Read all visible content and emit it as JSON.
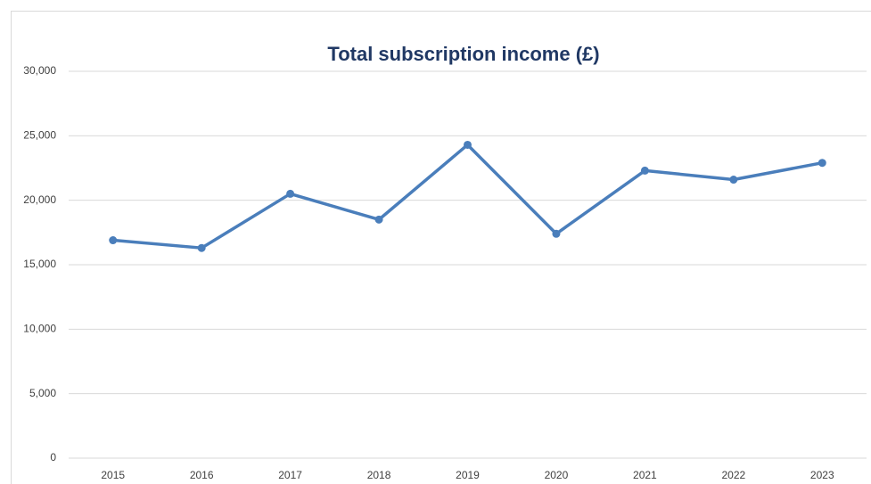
{
  "chart_data": {
    "type": "line",
    "title": "Total subscription income (£)",
    "categories": [
      "2015",
      "2016",
      "2017",
      "2018",
      "2019",
      "2020",
      "2021",
      "2022",
      "2023"
    ],
    "series": [
      {
        "name": "Total subscription income",
        "color": "#4a7ebb",
        "values": [
          16900,
          16300,
          20500,
          18500,
          24300,
          17400,
          22300,
          21600,
          22900
        ]
      }
    ],
    "ylim": [
      0,
      30000
    ],
    "yticks": [
      0,
      {
        "value": 5000,
        "label": "5,000"
      },
      {
        "value": 10000,
        "label": "10,000"
      },
      {
        "value": 15000,
        "label": "15,000"
      },
      {
        "value": 20000,
        "label": "20,000"
      },
      {
        "value": 25000,
        "label": "25,000"
      },
      {
        "value": 30000,
        "label": "30,000"
      }
    ],
    "grid": true,
    "legend": false
  }
}
